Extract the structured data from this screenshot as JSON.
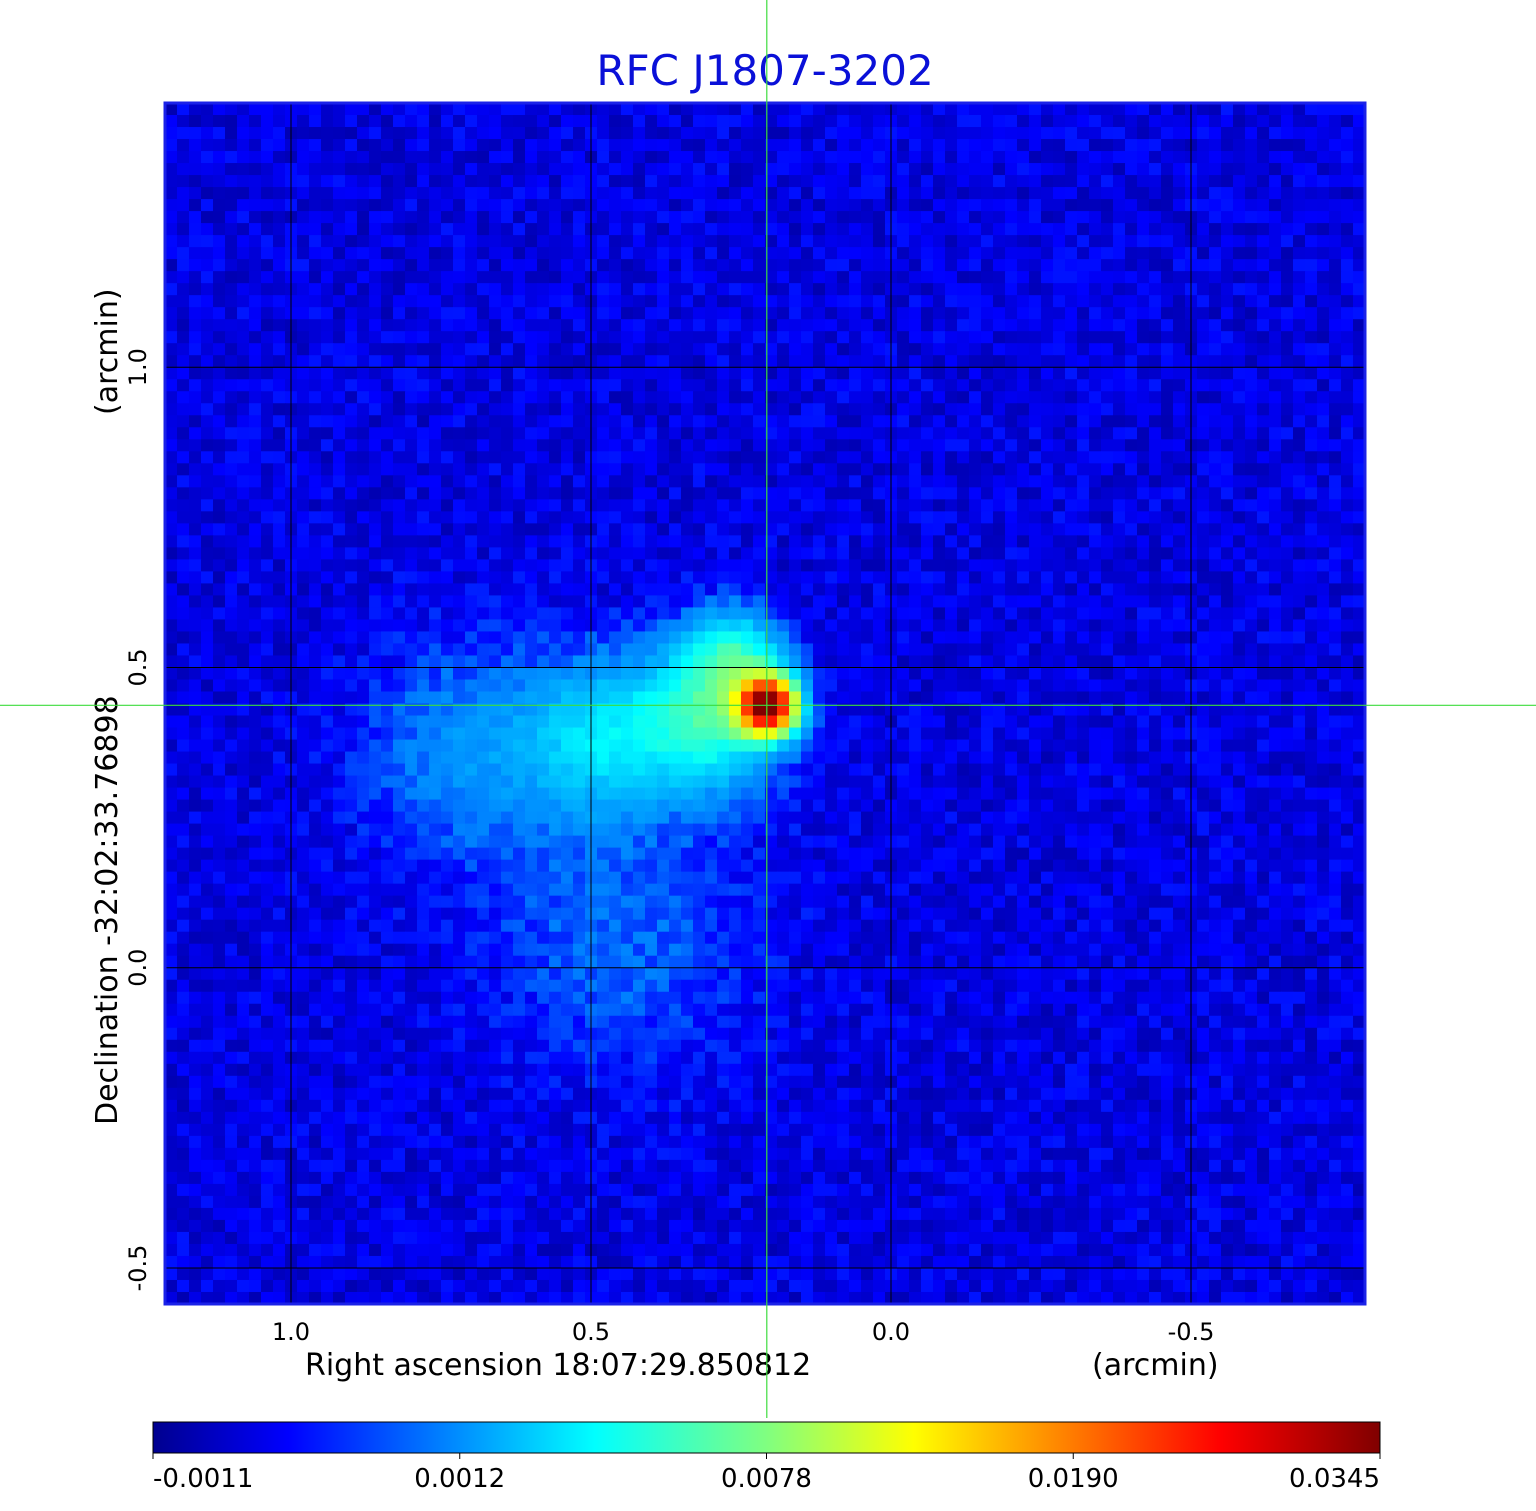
{
  "chart_data": {
    "type": "heatmap",
    "title": "RFC J1807-3202",
    "xlabel": "Right ascension  18:07:29.850812",
    "xunit": "(arcmin)",
    "ylabel": "Declination  -32:02:33.76898",
    "yunit": "(arcmin)",
    "xlim": [
      1.21,
      -0.79
    ],
    "ylim": [
      -0.56,
      1.44
    ],
    "x_ticks": [
      "1.0",
      "0.5",
      "0.0",
      "-0.5"
    ],
    "x_tick_values": [
      1.0,
      0.5,
      0.0,
      -0.5
    ],
    "y_ticks": [
      "-0.5",
      "0.0",
      "0.5",
      "1.0"
    ],
    "y_tick_values": [
      -0.5,
      0.0,
      0.5,
      1.0
    ],
    "grid": true,
    "crosshair": {
      "x": 0.207,
      "y": 0.437
    },
    "colorbar": {
      "ticks": [
        "-0.0011",
        "0.0012",
        "0.0078",
        "0.0190",
        "0.0345"
      ],
      "tick_values": [
        -0.0011,
        0.0012,
        0.0078,
        0.019,
        0.0345
      ],
      "colormap": "jet"
    },
    "features": [
      {
        "x": 0.207,
        "y": 0.437,
        "sigma": 0.03,
        "amp": 0.0345
      },
      {
        "x": 0.3,
        "y": 0.42,
        "sigma": 0.08,
        "amp": 0.006
      },
      {
        "x": 0.26,
        "y": 0.52,
        "sigma": 0.05,
        "amp": 0.0045
      },
      {
        "x": 0.48,
        "y": 0.38,
        "sigma": 0.09,
        "amp": 0.0035
      },
      {
        "x": 0.7,
        "y": 0.36,
        "sigma": 0.12,
        "amp": 0.0018
      },
      {
        "x": 0.45,
        "y": 0.05,
        "sigma": 0.15,
        "amp": 0.0012
      }
    ],
    "colors": {
      "title": "#0a10d8",
      "frame": "#1b22e8",
      "grid": "#000000",
      "crosshair": "#3ddc3d"
    }
  }
}
